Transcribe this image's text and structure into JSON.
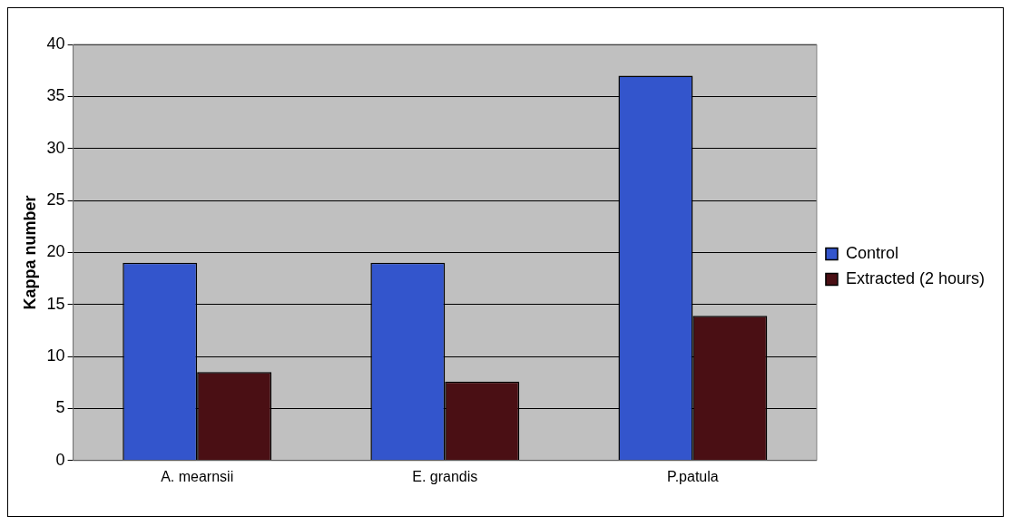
{
  "chart_data": {
    "type": "bar",
    "ylabel": "Kappa number",
    "categories": [
      "A. mearnsii",
      "E. grandis",
      "P.patula"
    ],
    "series": [
      {
        "name": "Control",
        "color": "#3355cc",
        "values": [
          19,
          19,
          37
        ]
      },
      {
        "name": "Extracted (2 hours)",
        "color": "#4a0f14",
        "values": [
          8.5,
          7.6,
          13.9
        ]
      }
    ],
    "ylim": [
      0,
      40
    ],
    "yticks": [
      0,
      5,
      10,
      15,
      20,
      25,
      30,
      35,
      40
    ],
    "grid": "y",
    "legend": "right"
  }
}
